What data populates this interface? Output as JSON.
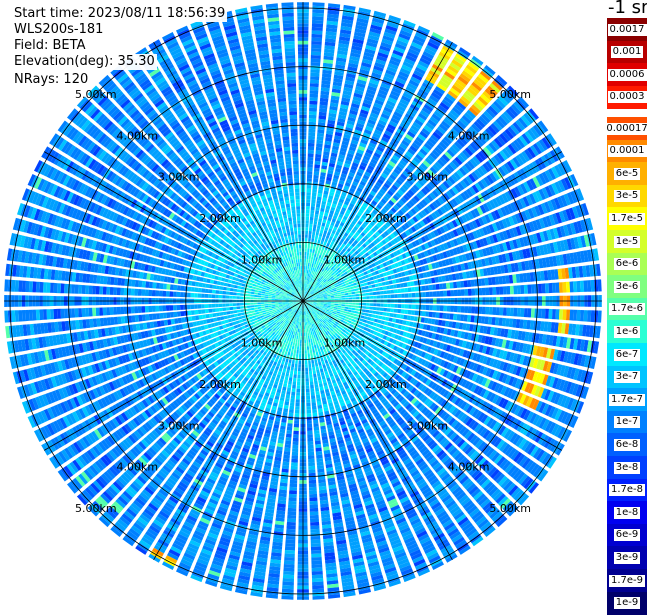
{
  "info": {
    "start_time": "Start time: 2023/08/11 18:56:39",
    "instrument": "WLS200s-181",
    "field": "Field: BETA",
    "elevation": "Elevation(deg): 35.30",
    "nrays": "NRays: 120"
  },
  "colorbar": {
    "unit": "-1 sr",
    "upper_segments": [
      {
        "label": "0.0017",
        "color": "#8b0000"
      },
      {
        "label": "0.001",
        "color": "#b80000"
      },
      {
        "label": "0.0006",
        "color": "#e00000"
      },
      {
        "label": "0.0003",
        "color": "#ff1a00"
      }
    ],
    "lower_segments": [
      {
        "label": "0.00017",
        "color": "#ff5000"
      },
      {
        "label": "0.0001",
        "color": "#ff8a00"
      },
      {
        "label": "6e-5",
        "color": "#ffb000"
      },
      {
        "label": "3e-5",
        "color": "#ffd800"
      },
      {
        "label": "1.7e-5",
        "color": "#ffff00"
      },
      {
        "label": "1e-5",
        "color": "#d4ff2a"
      },
      {
        "label": "6e-6",
        "color": "#aaff55"
      },
      {
        "label": "3e-6",
        "color": "#7fff80"
      },
      {
        "label": "1.7e-6",
        "color": "#55ffaa"
      },
      {
        "label": "1e-6",
        "color": "#2affd4"
      },
      {
        "label": "6e-7",
        "color": "#00e8ff"
      },
      {
        "label": "3e-7",
        "color": "#00c4ff"
      },
      {
        "label": "1.7e-7",
        "color": "#00a0ff"
      },
      {
        "label": "1e-7",
        "color": "#0080ff"
      },
      {
        "label": "6e-8",
        "color": "#0060ff"
      },
      {
        "label": "3e-8",
        "color": "#0040ff"
      },
      {
        "label": "1.7e-8",
        "color": "#0020ff"
      },
      {
        "label": "1e-8",
        "color": "#0000f0"
      },
      {
        "label": "6e-9",
        "color": "#0000d0"
      },
      {
        "label": "3e-9",
        "color": "#0000b0"
      },
      {
        "label": "1.7e-9",
        "color": "#000090"
      },
      {
        "label": "1e-9",
        "color": "#00006a"
      }
    ]
  },
  "chart_data": {
    "type": "heatmap",
    "projection": "polar PPI",
    "field": "BETA",
    "range_unit": "km",
    "ring_ranges_km": [
      1,
      2,
      3,
      4,
      5
    ],
    "ring_labels": [
      "1.00km",
      "2.00km",
      "3.00km",
      "4.00km",
      "5.00km"
    ],
    "max_range_km": 5.1,
    "n_rays": 120,
    "spoke_angles_deg": [
      0,
      30,
      60,
      90,
      120,
      150,
      180,
      210,
      240,
      270,
      300,
      330
    ],
    "label_angles_deg": [
      45,
      135,
      225,
      315
    ],
    "background_value_typical": "1e-7 to 3e-7",
    "high_value_features": [
      {
        "azimuth_range_deg": [
          28,
          43
        ],
        "range_km": [
          4.3,
          4.95
        ],
        "value": "1.7e-5 to 1e-4"
      },
      {
        "azimuth_range_deg": [
          84,
          98
        ],
        "range_km": [
          4.4,
          4.55
        ],
        "value": "3e-5 to 1e-4"
      },
      {
        "azimuth_range_deg": [
          101,
          116
        ],
        "range_km": [
          4.0,
          4.35
        ],
        "value": "1.7e-5 to 6e-5"
      },
      {
        "azimuth_range_deg": [
          205,
          212
        ],
        "range_km": [
          4.9,
          5.05
        ],
        "value": "1.7e-5 to 1e-4"
      }
    ]
  }
}
